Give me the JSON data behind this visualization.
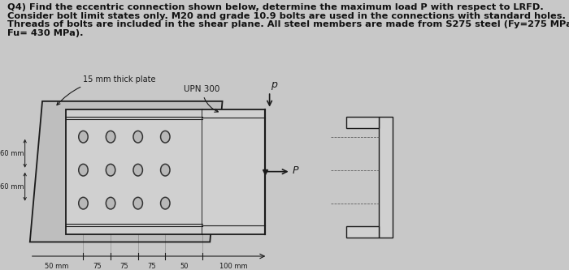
{
  "title_line1": "Q4) Find the eccentric connection shown below, determine the maximum load ",
  "title_bold1": "P",
  "title_rest1": " with respect to LRFD.",
  "title_line2": "Consider bolt limit states only. M20 and grade 10.9 bolts are used in the connections with standard holes.",
  "title_line3": "Threads of bolts are included in the shear plane. All steel members are made from S275 steel (Fy=275 MPa,",
  "title_line4": "Fu= 430 MPa).",
  "bg_color": "#c8c8c8",
  "plate_face": "#e0e0e0",
  "inner_face": "#d8d8d8",
  "channel_face": "#d8d8d8",
  "bolt_face": "#c0c0c0",
  "lc": "#1a1a1a",
  "dim_color": "#222222",
  "note_15mm": "15 mm thick plate",
  "label_upn": "UPN 300",
  "label_p": "p",
  "label_P": "P",
  "dim_labels": [
    "50 mm",
    "75",
    "75",
    "75",
    "50",
    "100 mm"
  ],
  "fontsize_title": 8.2,
  "fontsize_dim": 6.5,
  "fontsize_label": 7.5
}
